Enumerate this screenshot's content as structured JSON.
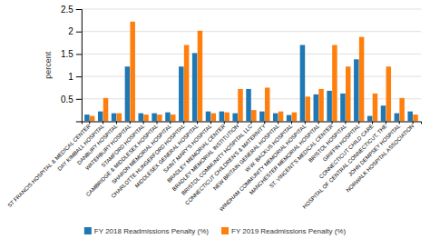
{
  "chart_data": {
    "type": "bar",
    "categories": [
      "ST FRANCIS HOSPITAL & MEDICAL CENTER",
      "DAY KIMBALL HOSPITAL",
      "DANBURY HOSPITAL",
      "WATERBURY HOSPITAL",
      "STAMFORD HOSPITAL",
      "CAMBRIDGE & MIDDLESEX HOSPITAL",
      "SHARON MEMORIAL HOSPITAL",
      "CHARLOTTE HUNGERFORD HOSPITAL",
      "MIDDLESEX GENERAL HOSPITAL",
      "SAINT MARY'S HOSPITAL",
      "BRADLEY MEMORIAL CENTER",
      "BRADLEY MEMORIAL INSTITUTION",
      "BRISTOL COMMUNITY HOSPITAL LLC",
      "CONNECTICUT CHILDREN'S & MATERNITY",
      "NEW BRITAIN GENERAL HOSPITAL",
      "W.W. BACKUS HOSPITAL",
      "WINDHAM COMMUNITY MEMORIAL HOSPITAL",
      "MANCHESTER MEMORIAL HOSPITAL",
      "ST. VINCENT'S MEDICAL CENTER",
      "BRISTOL HOSPITAL",
      "GRIFFIN HOSPITAL",
      "CONNECTICUT CHILD CARE",
      "HOSPITAL OF CENTRAL CONNECTICUT, THE",
      "JOHN DEMPSEY HOSPITAL",
      "NORWALK HOSPITAL ASSOCIATION"
    ],
    "series": [
      {
        "name": "FY 2018 Readmissions Penalty (%)",
        "values": [
          0.15,
          0.22,
          0.18,
          1.22,
          0.18,
          0.18,
          0.2,
          1.22,
          1.52,
          0.22,
          0.22,
          0.18,
          0.72,
          0.22,
          0.18,
          0.14,
          1.7,
          0.6,
          0.68,
          0.62,
          1.38,
          0.12,
          0.35,
          0.18,
          0.22
        ]
      },
      {
        "name": "FY 2019 Readmissions Penalty (%)",
        "values": [
          0.12,
          0.52,
          0.18,
          2.22,
          0.15,
          0.15,
          0.15,
          1.7,
          2.02,
          0.18,
          0.2,
          0.72,
          0.25,
          0.75,
          0.22,
          0.2,
          0.55,
          0.72,
          1.7,
          1.22,
          1.88,
          0.62,
          1.22,
          0.52,
          0.15
        ]
      }
    ],
    "ylabel": "percent",
    "ylim": [
      0,
      2.5
    ],
    "yticks": [
      0.5,
      1,
      1.5,
      2,
      2.5
    ],
    "grid": true,
    "legend": "bottom"
  }
}
